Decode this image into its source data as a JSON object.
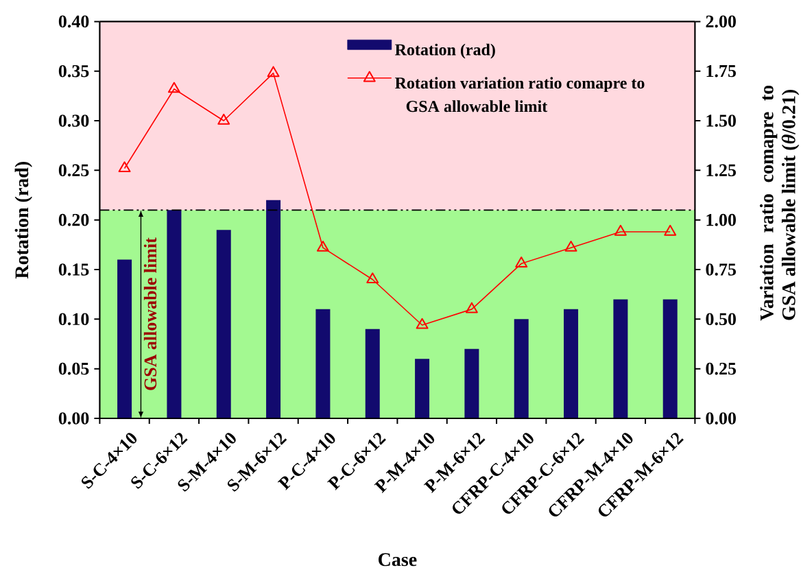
{
  "chart_data": {
    "type": "bar",
    "xlabel": "Case",
    "ylabel": "Rotation (rad)",
    "y2label": "Variation ratio comapre to GSA allowable limit (*θ*/0.21)",
    "categories": [
      "S-C-4×10",
      "S-C-6×12",
      "S-M-4×10",
      "S-M-6×12",
      "P-C-4×10",
      "P-C-6×12",
      "P-M-4×10",
      "P-M-6×12",
      "CFRP-C-4×10",
      "CFRP-C-6×12",
      "CFRP-M-4×10",
      "CFRP-M-6×12"
    ],
    "series": [
      {
        "name": "Rotation (rad)",
        "color": "#120a6e",
        "values": [
          0.16,
          0.21,
          0.19,
          0.22,
          0.11,
          0.09,
          0.06,
          0.07,
          0.1,
          0.11,
          0.12,
          0.12
        ]
      },
      {
        "name": "Rotation variation ratio comapre to GSA allowable limit",
        "type": "line",
        "axis": "y2",
        "color": "#ff0000",
        "values": [
          1.26,
          1.66,
          1.5,
          1.74,
          0.86,
          0.7,
          0.47,
          0.55,
          0.78,
          0.86,
          0.94,
          0.94
        ]
      }
    ],
    "ylim": [
      0,
      0.4
    ],
    "yticks": [
      {
        "value": 0,
        "label": "0.00"
      },
      {
        "value": 0.05,
        "label": "0.05"
      },
      {
        "value": 0.1,
        "label": "0.10"
      },
      {
        "value": 0.15,
        "label": "0.15"
      },
      {
        "value": 0.2,
        "label": "0.20"
      },
      {
        "value": 0.25,
        "label": "0.25"
      },
      {
        "value": 0.3,
        "label": "0.30"
      },
      {
        "value": 0.35,
        "label": "0.35"
      },
      {
        "value": 0.4,
        "label": "0.40"
      }
    ],
    "y2lim": [
      0,
      2
    ],
    "y2ticks": [
      {
        "value": 0,
        "label": "0.00"
      },
      {
        "value": 0.25,
        "label": "0.25"
      },
      {
        "value": 0.5,
        "label": "0.50"
      },
      {
        "value": 0.75,
        "label": "0.75"
      },
      {
        "value": 1,
        "label": "1.00"
      },
      {
        "value": 1.25,
        "label": "1.25"
      },
      {
        "value": 1.5,
        "label": "1.50"
      },
      {
        "value": 1.75,
        "label": "1.75"
      },
      {
        "value": 2,
        "label": "2.00"
      }
    ],
    "ref_lines": [
      {
        "axis": "y",
        "value": 0.21,
        "color": "#000000",
        "line_style": "dashdot"
      }
    ],
    "bands": [
      {
        "axis": "y",
        "from": 0,
        "to": 0.21,
        "color": "#a3f991",
        "label": "GSA allowable limit"
      },
      {
        "axis": "y",
        "from": 0.21,
        "to": 0.4,
        "color": "#ffd9df"
      }
    ],
    "marker": "triangle",
    "legend": "top right"
  }
}
